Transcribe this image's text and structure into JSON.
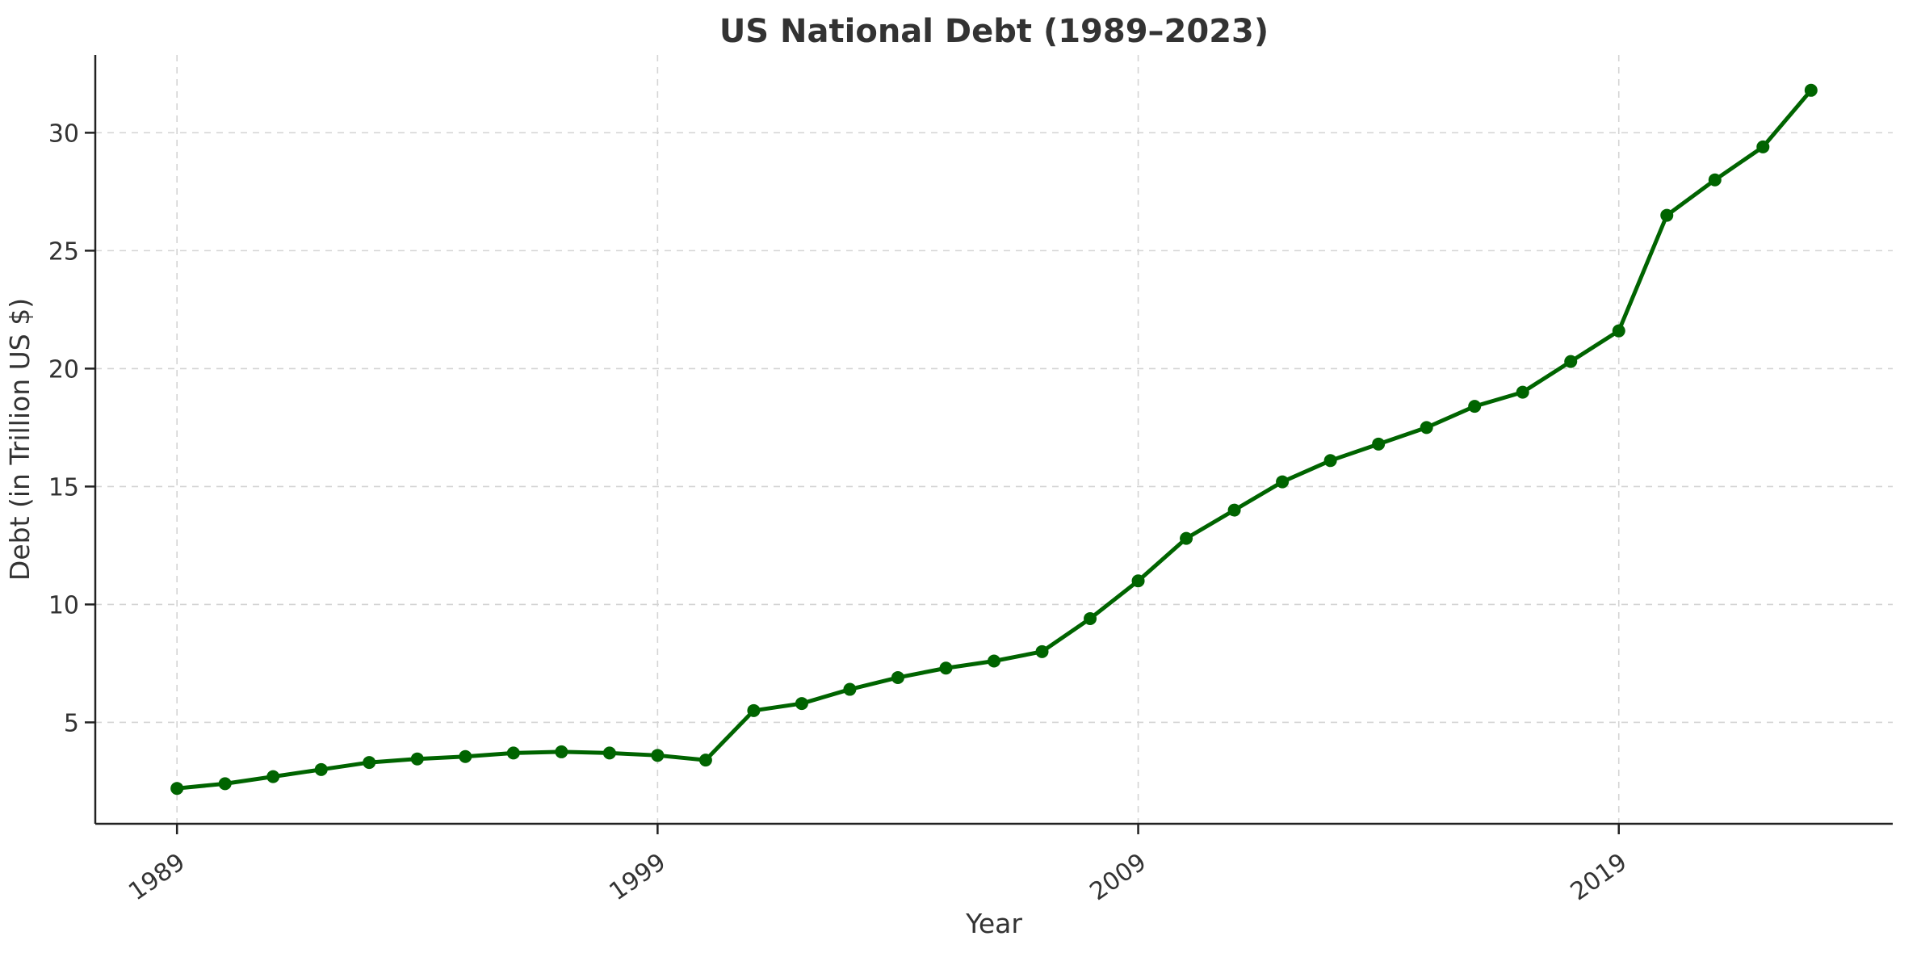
{
  "figure": {
    "title": "US National Debt (1989–2023)",
    "xlabel": "Year",
    "ylabel": "Debt (in Trillion US $)"
  },
  "chart_data": {
    "type": "line",
    "title": "US National Debt (1989–2023)",
    "xlabel": "Year",
    "ylabel": "Debt (in Trillion US $)",
    "x": [
      1989,
      1990,
      1991,
      1992,
      1993,
      1994,
      1995,
      1996,
      1997,
      1998,
      1999,
      2000,
      2001,
      2002,
      2003,
      2004,
      2005,
      2006,
      2007,
      2008,
      2009,
      2010,
      2011,
      2012,
      2013,
      2014,
      2015,
      2016,
      2017,
      2018,
      2019,
      2020,
      2021,
      2022,
      2023
    ],
    "values": [
      2.2,
      2.4,
      2.7,
      3.0,
      3.3,
      3.45,
      3.55,
      3.7,
      3.75,
      3.7,
      3.6,
      3.4,
      5.5,
      5.8,
      6.4,
      6.9,
      7.3,
      7.6,
      8.0,
      9.4,
      11.0,
      12.8,
      14.0,
      15.2,
      16.1,
      16.8,
      17.5,
      18.4,
      19.0,
      20.3,
      21.6,
      26.5,
      28.0,
      29.4,
      31.8
    ],
    "xticks": [
      1989,
      1999,
      2009,
      2019
    ],
    "yticks": [
      5,
      10,
      15,
      20,
      25,
      30
    ],
    "xlim": [
      1987.3,
      2024.7
    ],
    "ylim": [
      0.7,
      33.3
    ],
    "grid": true,
    "grid_style": "dashed",
    "legend_position": "none",
    "line_color": "#006400",
    "marker": "circle",
    "grid_color": "#d4d4d4",
    "axis_color": "#222222",
    "text_color": "#333333",
    "background_color": "#ffffff"
  }
}
